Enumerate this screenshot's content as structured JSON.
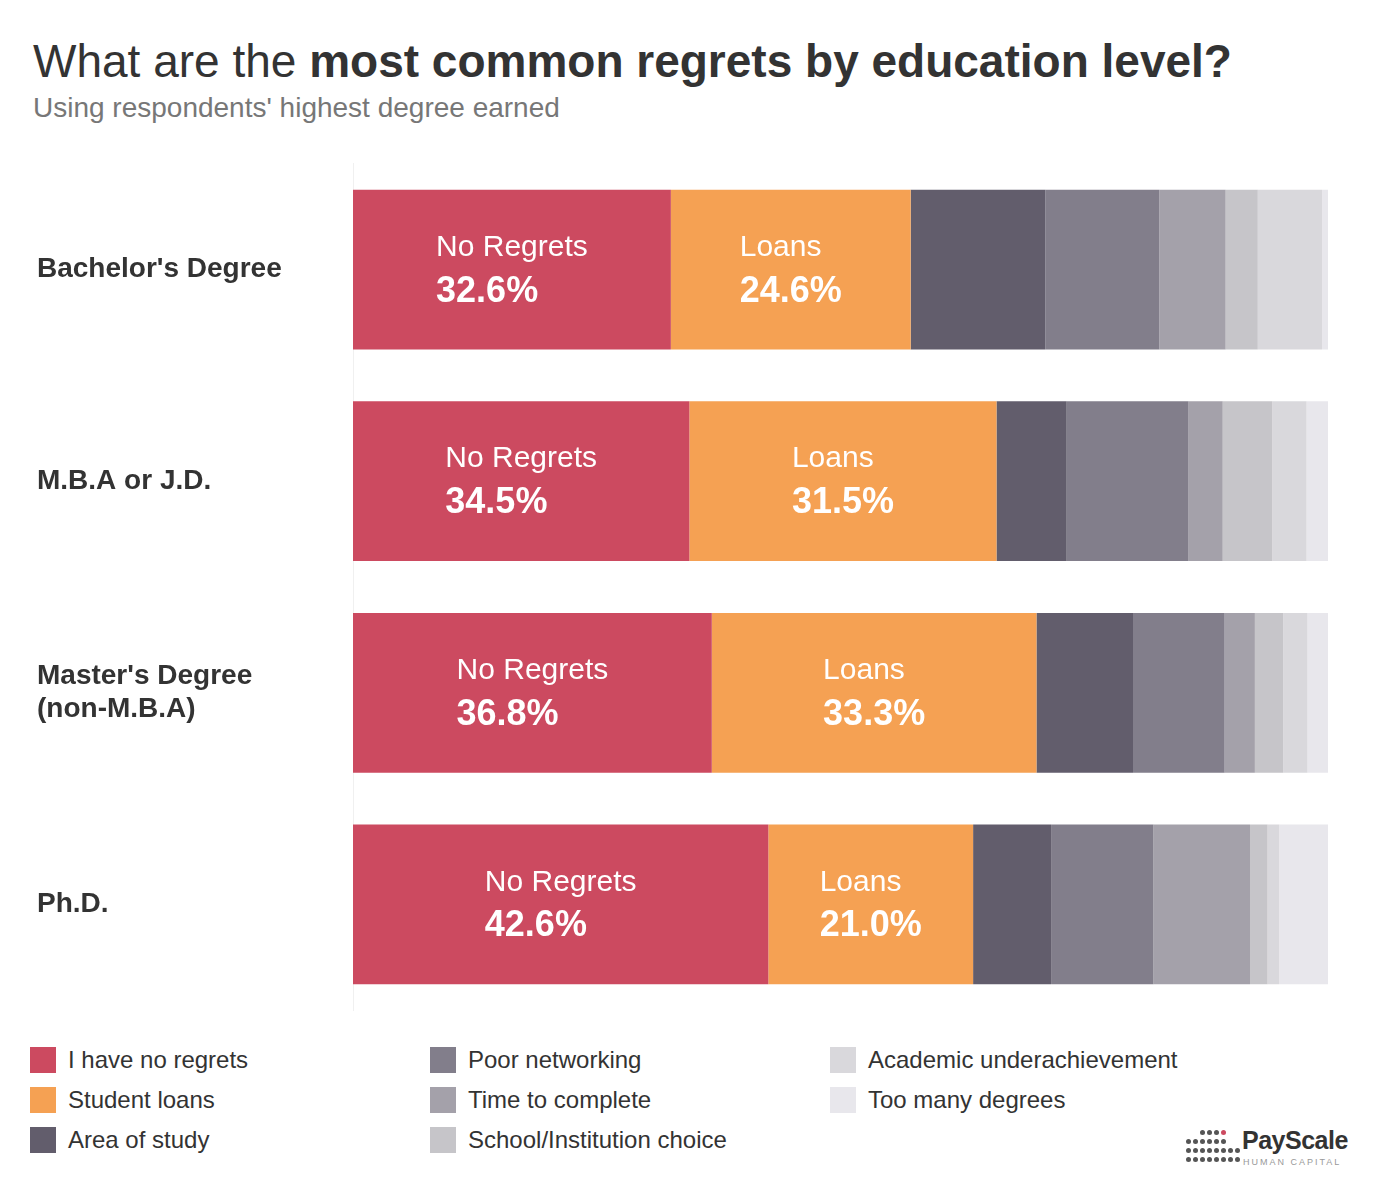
{
  "chart_data": {
    "type": "bar",
    "title": "What are the most common regrets by education level?",
    "subtitle": "Using respondents' highest degree earned",
    "orientation": "horizontal",
    "stacked": true,
    "grid": false,
    "legend": "bottom",
    "tick_labels": "y",
    "xlim": [
      0,
      100
    ],
    "categories": [
      "Bachelor's Degree",
      "M.B.A or J.D.",
      "Master's Degree (non-M.B.A)",
      "Ph.D."
    ],
    "series": [
      {
        "name": "I have no regrets",
        "color": "#cc4a60",
        "values": [
          32.6,
          34.5,
          36.8,
          42.6
        ],
        "data_labels": true,
        "value_labels": [
          [
            "No Regrets",
            "32.6%"
          ],
          [
            "No Regrets",
            "34.5%"
          ],
          [
            "No Regrets",
            "36.8%"
          ],
          [
            "No Regrets",
            "42.6%"
          ]
        ]
      },
      {
        "name": "Student loans",
        "color": "#f5a153",
        "values": [
          24.6,
          31.5,
          33.3,
          21.0
        ],
        "data_labels": true,
        "value_labels": [
          [
            "Loans",
            "24.6%"
          ],
          [
            "Loans",
            "31.5%"
          ],
          [
            "Loans",
            "33.3%"
          ],
          [
            "Loans",
            "21.0%"
          ]
        ]
      },
      {
        "name": "Area of study",
        "color": "#625d6c",
        "values": [
          13.8,
          7.2,
          9.9,
          8.0
        ]
      },
      {
        "name": "Poor networking",
        "color": "#827e8b",
        "values": [
          11.7,
          12.5,
          9.4,
          10.5
        ]
      },
      {
        "name": "Time to complete",
        "color": "#a4a1aa",
        "values": [
          6.8,
          3.5,
          3.1,
          9.9
        ]
      },
      {
        "name": "School/Institution choice",
        "color": "#c6c5c9",
        "values": [
          3.3,
          5.1,
          2.9,
          1.8
        ]
      },
      {
        "name": "Academic underachievement",
        "color": "#d9d8dc",
        "values": [
          6.6,
          3.5,
          2.5,
          1.2
        ]
      },
      {
        "name": "Too many degrees",
        "color": "#e8e7ec",
        "values": [
          0.6,
          2.2,
          2.1,
          5.0
        ]
      }
    ],
    "annotations": [
      "PayScale",
      "HUMAN CAPITAL"
    ]
  }
}
